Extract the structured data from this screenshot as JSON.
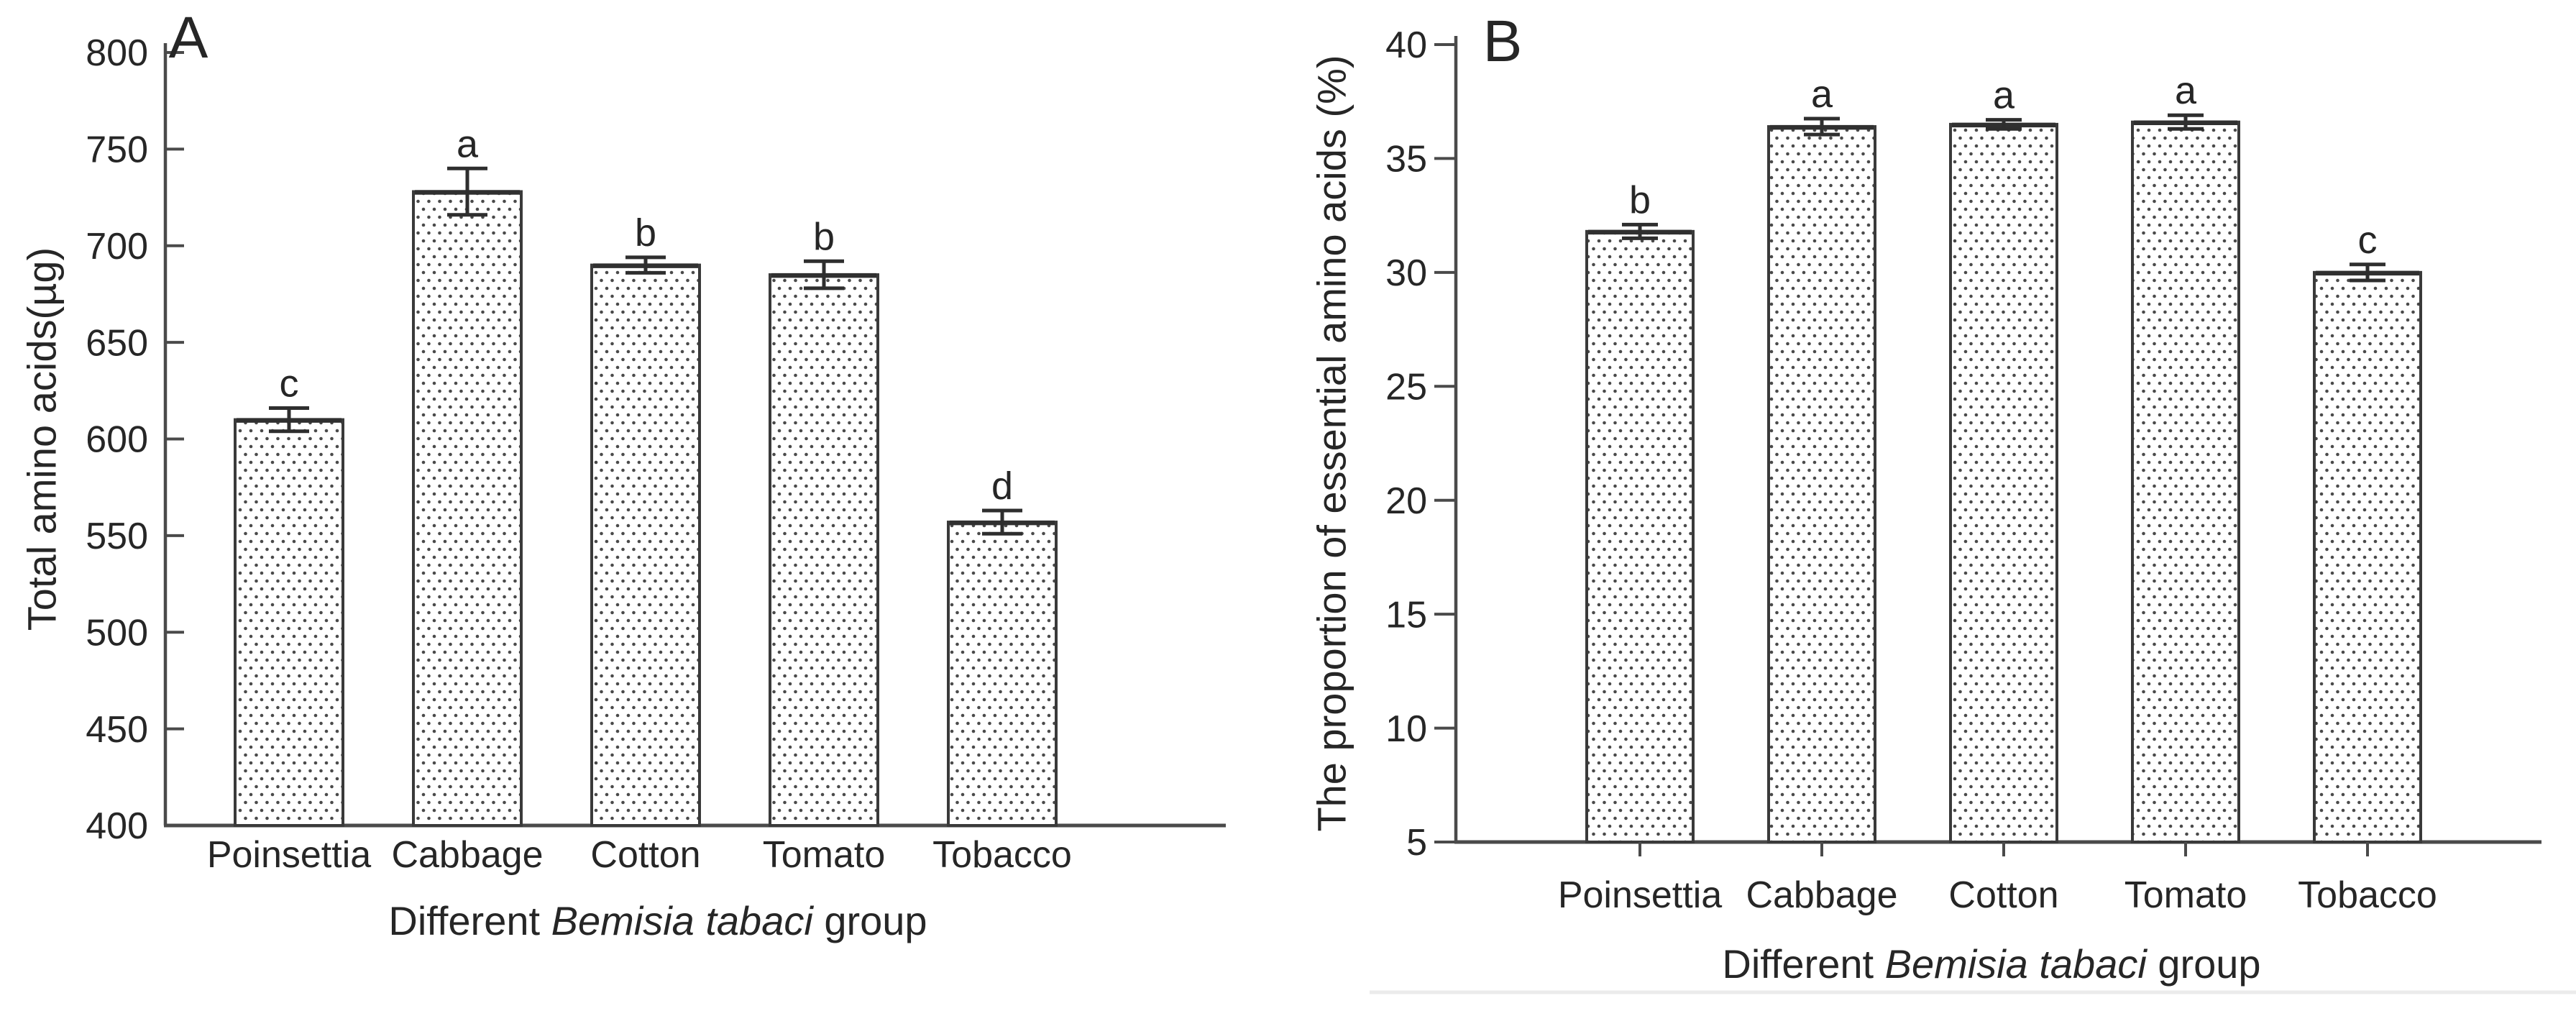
{
  "figure": {
    "background": "#ffffff",
    "ink_color": "#262626",
    "axis_color": "#4a4a4a",
    "bar_border_color": "#3a3a3a",
    "bar_fill_color": "#ffffff",
    "bar_dot_color": "#4a4a4a",
    "artifact_line_color": "#ebebeb"
  },
  "chart_data": [
    {
      "type": "bar",
      "panel_label": "A",
      "ylabel": "Total amino acids(µg)",
      "xlabel": {
        "prefix": "Different ",
        "italic": "Bemisia tabaci",
        "suffix": " group"
      },
      "categories": [
        "Poinsettia",
        "Cabbage",
        "Cotton",
        "Tomato",
        "Tobacco"
      ],
      "values": [
        610,
        728,
        690,
        685,
        557
      ],
      "errors": [
        6,
        12,
        4,
        7,
        6
      ],
      "sig_letters": [
        "c",
        "a",
        "b",
        "b",
        "d"
      ],
      "ylim": [
        400,
        800
      ],
      "ytick_step": 50,
      "yticks": [
        400,
        450,
        500,
        550,
        600,
        650,
        700,
        750,
        800
      ],
      "grid": false,
      "legend": null,
      "bar_pattern": "dotted",
      "tick_direction": "in"
    },
    {
      "type": "bar",
      "panel_label": "B",
      "ylabel": "The proportion of essential amino acids (%)",
      "xlabel": {
        "prefix": "Different ",
        "italic": "Bemisia tabaci",
        "suffix": " group"
      },
      "categories": [
        "Poinsettia",
        "Cabbage",
        "Cotton",
        "Tomato",
        "Tobacco"
      ],
      "values": [
        31.8,
        36.4,
        36.5,
        36.6,
        30.0
      ],
      "errors": [
        0.3,
        0.35,
        0.2,
        0.3,
        0.35
      ],
      "sig_letters": [
        "b",
        "a",
        "a",
        "a",
        "c"
      ],
      "ylim": [
        5,
        40
      ],
      "ytick_step": 5,
      "yticks": [
        5,
        10,
        15,
        20,
        25,
        30,
        35,
        40
      ],
      "grid": false,
      "legend": null,
      "bar_pattern": "dotted",
      "tick_direction": "out"
    }
  ]
}
